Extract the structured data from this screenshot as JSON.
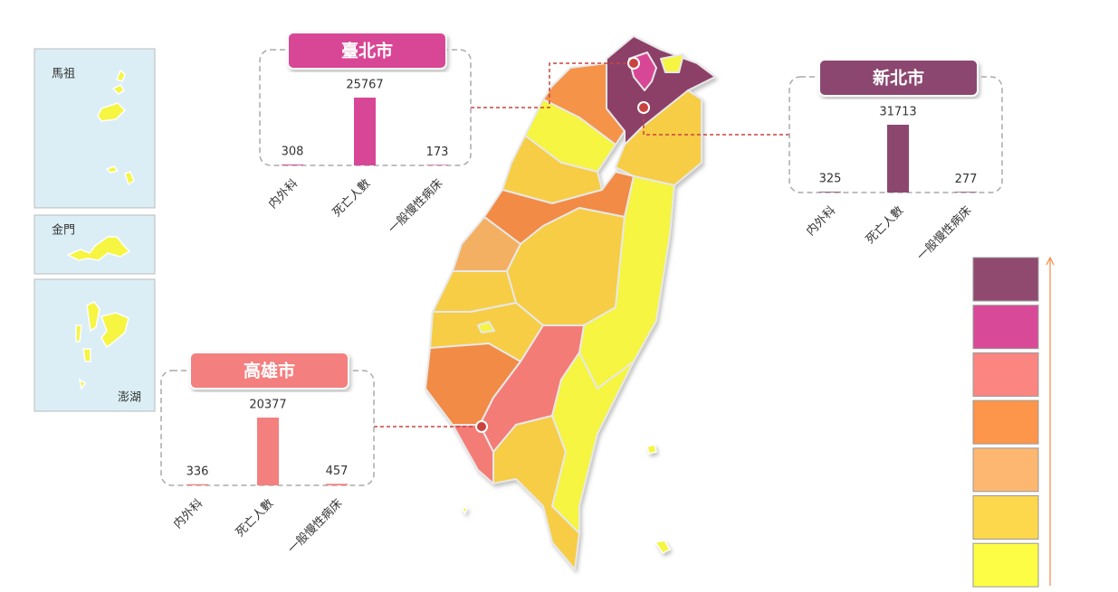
{
  "callouts": [
    {
      "title": "臺北市",
      "color": "#d84795",
      "categories": [
        "内外科",
        "死亡人數",
        "一般慢性病床"
      ],
      "values": [
        308,
        25767,
        173
      ]
    },
    {
      "title": "新北市",
      "color": "#8c476f",
      "categories": [
        "内外科",
        "死亡人數",
        "一般慢性病床"
      ],
      "values": [
        325,
        31713,
        277
      ]
    },
    {
      "title": "高雄市",
      "color": "#f47f7f",
      "categories": [
        "内外科",
        "死亡人數",
        "一般慢性病床"
      ],
      "values": [
        336,
        20377,
        457
      ]
    }
  ],
  "insets": [
    "馬祖",
    "金門",
    "澎湖"
  ],
  "legend": {
    "colors": [
      "#904a70",
      "#d84a97",
      "#fb8580",
      "#fd954a",
      "#fdb771",
      "#fdd74c",
      "#fdfd45"
    ]
  }
}
